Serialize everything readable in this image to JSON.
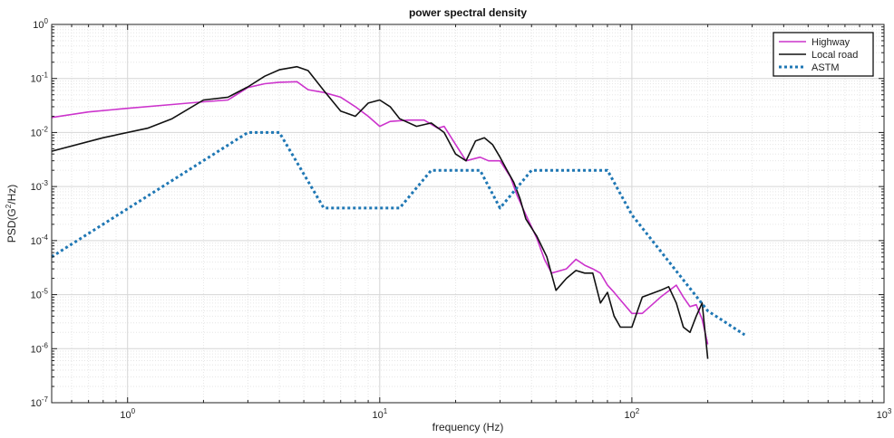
{
  "chart_data": {
    "type": "line",
    "title": "power spectral density",
    "xlabel": "frequency (Hz)",
    "ylabel_parts": [
      "PSD(G",
      "2",
      "/Hz)"
    ],
    "x_scale": "log",
    "y_scale": "log",
    "xlim": [
      0.5,
      1000
    ],
    "ylim": [
      1e-07,
      1
    ],
    "x_ticks": [
      1,
      10,
      100,
      1000
    ],
    "x_tick_labels": [
      {
        "base": "10",
        "exp": "0"
      },
      {
        "base": "10",
        "exp": "1"
      },
      {
        "base": "10",
        "exp": "2"
      },
      {
        "base": "10",
        "exp": "3"
      }
    ],
    "y_ticks": [
      1e-07,
      1e-06,
      1e-05,
      0.0001,
      0.001,
      0.01,
      0.1,
      1
    ],
    "y_tick_labels": [
      {
        "base": "10",
        "exp": "-7"
      },
      {
        "base": "10",
        "exp": "-6"
      },
      {
        "base": "10",
        "exp": "-5"
      },
      {
        "base": "10",
        "exp": "-4"
      },
      {
        "base": "10",
        "exp": "-3"
      },
      {
        "base": "10",
        "exp": "-2"
      },
      {
        "base": "10",
        "exp": "-1"
      },
      {
        "base": "10",
        "exp": "0"
      }
    ],
    "grid": "major and minor",
    "legend_position": "top-right",
    "series": [
      {
        "name": "Highway",
        "color": "#cc33cc",
        "style": "solid",
        "points": [
          [
            0.5,
            0.019
          ],
          [
            0.7,
            0.024
          ],
          [
            1.0,
            0.028
          ],
          [
            1.5,
            0.033
          ],
          [
            2.0,
            0.037
          ],
          [
            2.5,
            0.04
          ],
          [
            3.0,
            0.068
          ],
          [
            3.5,
            0.08
          ],
          [
            4.0,
            0.085
          ],
          [
            4.7,
            0.087
          ],
          [
            5.2,
            0.062
          ],
          [
            6.0,
            0.055
          ],
          [
            7.0,
            0.045
          ],
          [
            8.0,
            0.03
          ],
          [
            9.0,
            0.02
          ],
          [
            10.0,
            0.013
          ],
          [
            11.0,
            0.016
          ],
          [
            13.0,
            0.017
          ],
          [
            15.0,
            0.017
          ],
          [
            17.0,
            0.012
          ],
          [
            18.0,
            0.013
          ],
          [
            20.0,
            0.006
          ],
          [
            22.0,
            0.003
          ],
          [
            25.0,
            0.0035
          ],
          [
            27.0,
            0.003
          ],
          [
            30.0,
            0.003
          ],
          [
            33.0,
            0.0015
          ],
          [
            35.0,
            0.0007
          ],
          [
            38.0,
            0.0003
          ],
          [
            40.0,
            0.00018
          ],
          [
            42.0,
            0.00011
          ],
          [
            45.0,
            4.5e-05
          ],
          [
            48.0,
            2.5e-05
          ],
          [
            55.0,
            3e-05
          ],
          [
            60.0,
            4.5e-05
          ],
          [
            65.0,
            3.5e-05
          ],
          [
            70.0,
            3e-05
          ],
          [
            75.0,
            2.5e-05
          ],
          [
            80.0,
            1.5e-05
          ],
          [
            85.0,
            1.1e-05
          ],
          [
            90.0,
            8e-06
          ],
          [
            100.0,
            4.5e-06
          ],
          [
            110.0,
            4.5e-06
          ],
          [
            130.0,
            9e-06
          ],
          [
            150.0,
            1.5e-05
          ],
          [
            160.0,
            9e-06
          ],
          [
            170.0,
            6e-06
          ],
          [
            180.0,
            6.5e-06
          ],
          [
            190.0,
            3.5e-06
          ],
          [
            200.0,
            1.2e-06
          ]
        ]
      },
      {
        "name": "Local road",
        "color": "#111111",
        "style": "solid",
        "points": [
          [
            0.5,
            0.0045
          ],
          [
            0.8,
            0.008
          ],
          [
            1.2,
            0.012
          ],
          [
            1.5,
            0.018
          ],
          [
            2.0,
            0.04
          ],
          [
            2.5,
            0.045
          ],
          [
            3.0,
            0.07
          ],
          [
            3.5,
            0.11
          ],
          [
            4.0,
            0.145
          ],
          [
            4.7,
            0.165
          ],
          [
            5.2,
            0.14
          ],
          [
            6.0,
            0.06
          ],
          [
            7.0,
            0.025
          ],
          [
            8.0,
            0.02
          ],
          [
            9.0,
            0.035
          ],
          [
            10.0,
            0.04
          ],
          [
            11.0,
            0.03
          ],
          [
            12.0,
            0.018
          ],
          [
            14.0,
            0.013
          ],
          [
            16.0,
            0.015
          ],
          [
            18.0,
            0.01
          ],
          [
            20.0,
            0.004
          ],
          [
            22.0,
            0.003
          ],
          [
            24.0,
            0.007
          ],
          [
            26.0,
            0.008
          ],
          [
            28.0,
            0.006
          ],
          [
            30.0,
            0.0035
          ],
          [
            32.0,
            0.002
          ],
          [
            34.0,
            0.0012
          ],
          [
            36.0,
            0.0006
          ],
          [
            38.0,
            0.00025
          ],
          [
            42.0,
            0.00012
          ],
          [
            46.0,
            5e-05
          ],
          [
            50.0,
            1.2e-05
          ],
          [
            55.0,
            2e-05
          ],
          [
            60.0,
            2.8e-05
          ],
          [
            65.0,
            2.5e-05
          ],
          [
            70.0,
            2.5e-05
          ],
          [
            75.0,
            7e-06
          ],
          [
            80.0,
            1.1e-05
          ],
          [
            85.0,
            4e-06
          ],
          [
            90.0,
            2.5e-06
          ],
          [
            100.0,
            2.5e-06
          ],
          [
            110.0,
            9e-06
          ],
          [
            130.0,
            1.2e-05
          ],
          [
            140.0,
            1.4e-05
          ],
          [
            150.0,
            7e-06
          ],
          [
            160.0,
            2.5e-06
          ],
          [
            170.0,
            2e-06
          ],
          [
            180.0,
            4e-06
          ],
          [
            190.0,
            7e-06
          ],
          [
            200.0,
            6.5e-07
          ]
        ]
      },
      {
        "name": "ASTM",
        "color": "#1f77b4",
        "style": "dotted",
        "points": [
          [
            0.5,
            5e-05
          ],
          [
            3.0,
            0.01
          ],
          [
            4.0,
            0.01
          ],
          [
            6.0,
            0.0004
          ],
          [
            12.0,
            0.0004
          ],
          [
            16.0,
            0.002
          ],
          [
            25.0,
            0.002
          ],
          [
            30.0,
            0.0004
          ],
          [
            40.0,
            0.002
          ],
          [
            80.0,
            0.002
          ],
          [
            100.0,
            0.0003
          ],
          [
            200.0,
            5e-06
          ],
          [
            280.0,
            1.8e-06
          ]
        ]
      }
    ]
  }
}
